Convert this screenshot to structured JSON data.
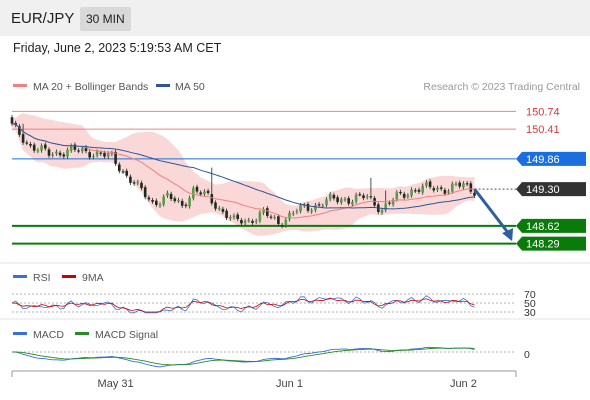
{
  "header": {
    "symbol": "EUR/JPY",
    "timeframe": "30 MIN",
    "datetime": "Friday, June 2, 2023 5:19:53 AM CET"
  },
  "legend": {
    "ma20": {
      "label": "MA 20 + Bollinger Bands",
      "color": "#f08080"
    },
    "ma50": {
      "label": "MA 50",
      "color": "#2f5597"
    },
    "credit": "Research © 2023 Trading Central"
  },
  "chart_data": {
    "type": "candlestick",
    "title": "EUR/JPY",
    "ylim": [
      147.95,
      150.95
    ],
    "x_ticks": [
      {
        "label": "May 31",
        "bar": 28
      },
      {
        "label": "Jun 1",
        "bar": 75
      },
      {
        "label": "Jun 2",
        "bar": 122
      }
    ],
    "levels": [
      {
        "value": 150.74,
        "label": "150.74",
        "kind": "resistance",
        "color": "#f08080"
      },
      {
        "value": 150.41,
        "label": "150.41",
        "kind": "resistance",
        "color": "#f08080"
      },
      {
        "value": 149.86,
        "label": "149.86",
        "kind": "pivot",
        "color": "#1a6fe0"
      },
      {
        "value": 149.3,
        "label": "149.30",
        "kind": "last",
        "color": "#333333"
      },
      {
        "value": 148.62,
        "label": "148.62",
        "kind": "support",
        "color": "#0a7a0a"
      },
      {
        "value": 148.29,
        "label": "148.29",
        "kind": "support",
        "color": "#0a7a0a"
      }
    ],
    "arrow": {
      "from_bar": 125,
      "from": 149.3,
      "to_bar": 133,
      "to": 148.3,
      "color": "#2f5fa0"
    },
    "rsi": {
      "labels": [
        "RSI",
        "9MA"
      ],
      "colors": [
        "#3a6fd8",
        "#cc0000"
      ],
      "levels": [
        70,
        50,
        30
      ]
    },
    "macd": {
      "labels": [
        "MACD",
        "MACD Signal"
      ],
      "colors": [
        "#3a6fd8",
        "#2a8a2a"
      ],
      "zero_label": "0"
    }
  }
}
